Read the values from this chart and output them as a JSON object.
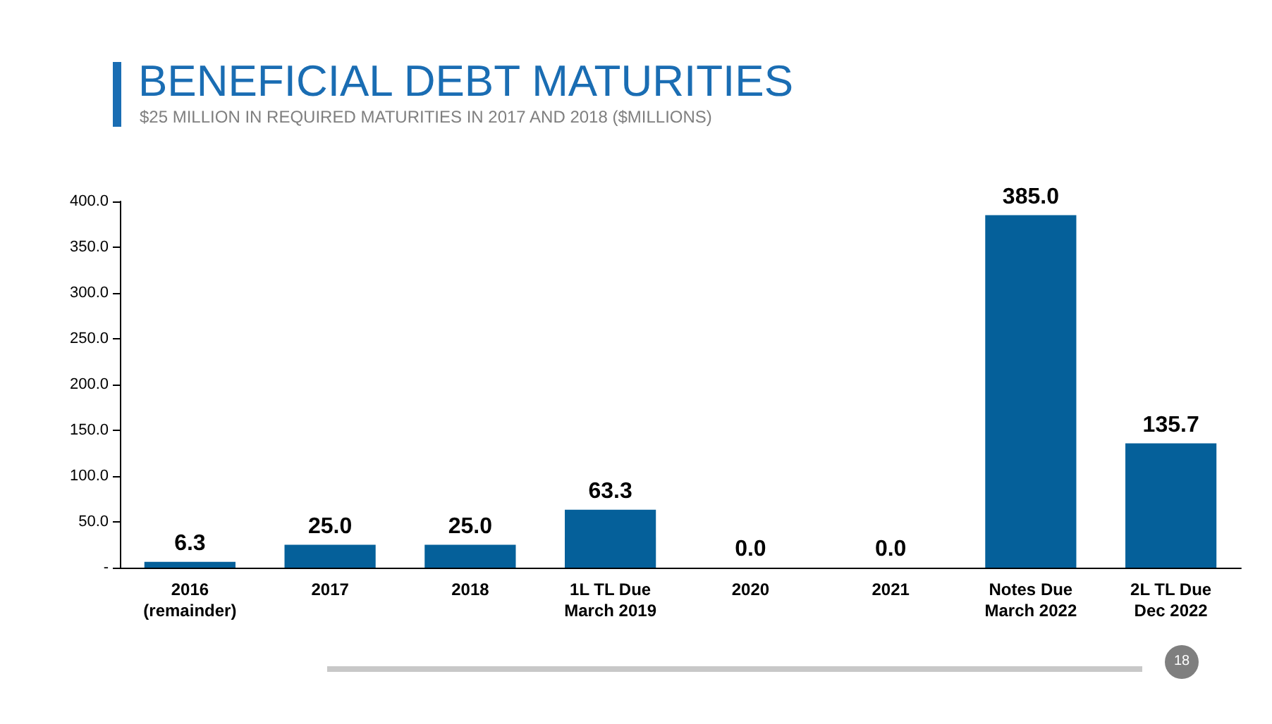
{
  "chart_data": {
    "type": "bar",
    "title": "BENEFICIAL DEBT MATURITIES",
    "subtitle": "$25 MILLION IN REQUIRED MATURITIES IN 2017 AND 2018 ($MILLIONS)",
    "categories": [
      "2016\n(remainder)",
      "2017",
      "2018",
      "1L TL Due\nMarch 2019",
      "2020",
      "2021",
      "Notes Due\nMarch 2022",
      "2L TL Due\nDec 2022"
    ],
    "values": [
      6.3,
      25,
      25,
      63.3,
      0,
      0,
      385,
      135.7
    ],
    "value_labels": [
      "6.3",
      "25.0",
      "25.0",
      "63.3",
      "0.0",
      "0.0",
      "385.0",
      "135.7"
    ],
    "color": "#05609a",
    "ylim": [
      0,
      400
    ],
    "yticks": [
      {
        "value": 0,
        "label": "-"
      },
      {
        "value": 50,
        "label": "50.0"
      },
      {
        "value": 100,
        "label": "100.0"
      },
      {
        "value": 150,
        "label": "150.0"
      },
      {
        "value": 200,
        "label": "200.0"
      },
      {
        "value": 250,
        "label": "250.0"
      },
      {
        "value": 300,
        "label": "300.0"
      },
      {
        "value": 350,
        "label": "350.0"
      },
      {
        "value": 400,
        "label": "400.0"
      }
    ],
    "grid": false,
    "annotations": [
      "18"
    ]
  }
}
